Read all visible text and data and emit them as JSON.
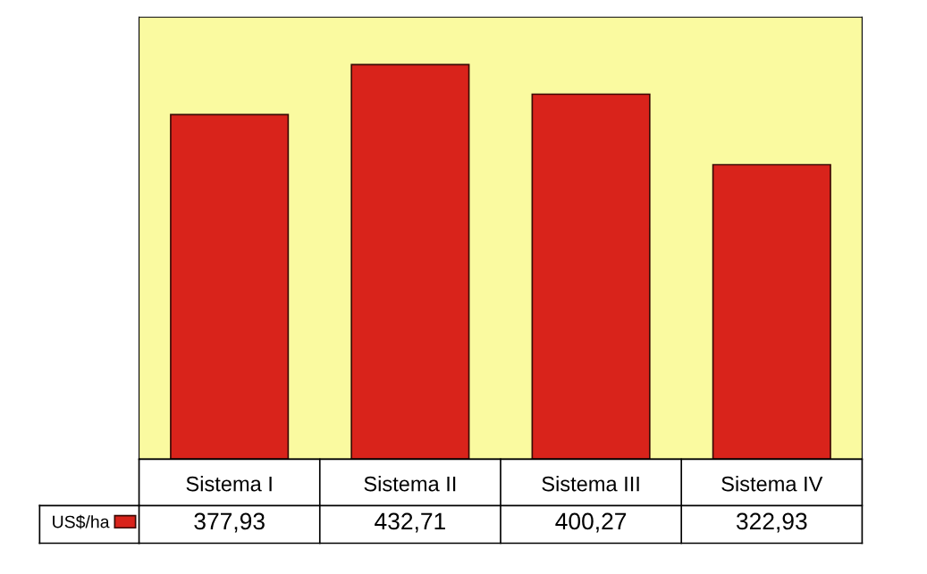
{
  "chart_data": {
    "type": "bar",
    "categories": [
      "Sistema I",
      "Sistema II",
      "Sistema III",
      "Sistema IV"
    ],
    "series": [
      {
        "name": "US$/ha",
        "color": "#d9231b",
        "values": [
          377.93,
          432.71,
          400.27,
          322.93
        ],
        "value_labels": [
          "377,93",
          "432,71",
          "400,27",
          "322,93"
        ]
      }
    ],
    "legend": "bottom left"
  }
}
